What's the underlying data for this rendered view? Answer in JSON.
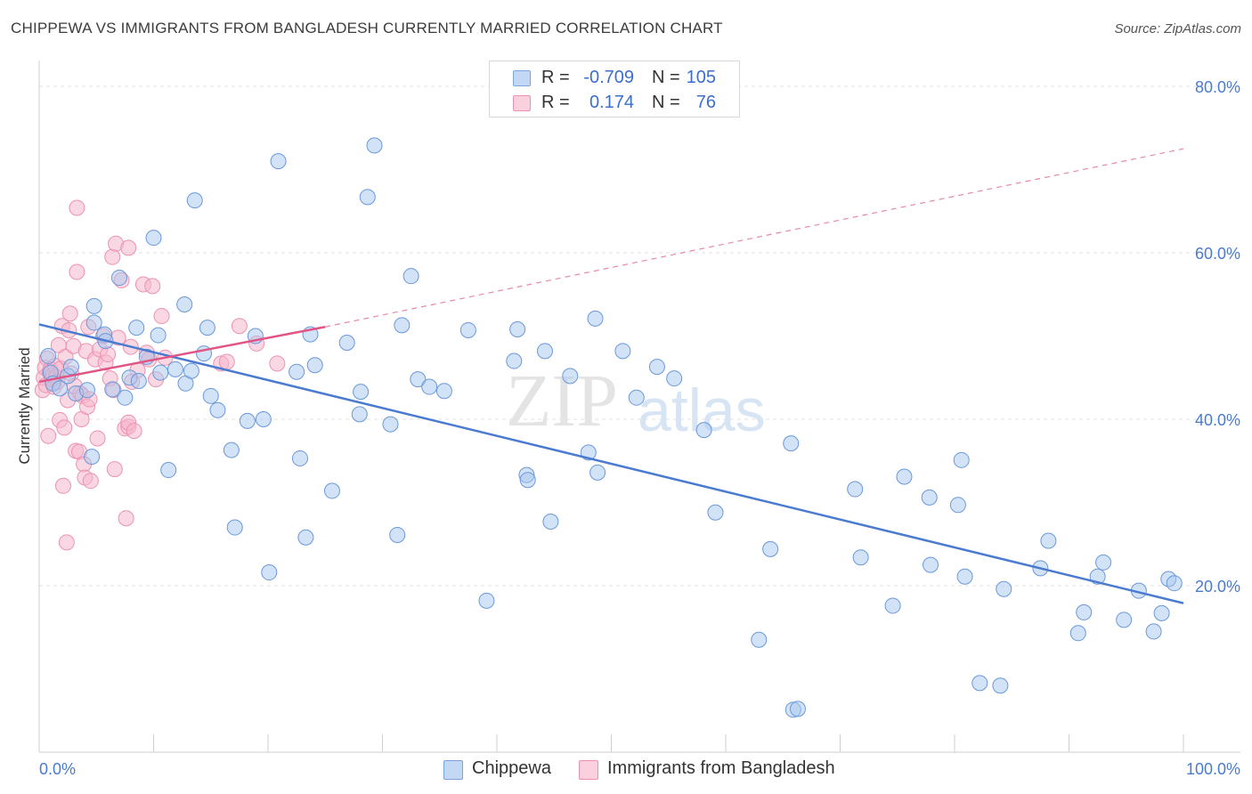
{
  "title": "CHIPPEWA VS IMMIGRANTS FROM BANGLADESH CURRENTLY MARRIED CORRELATION CHART",
  "source": "Source: ZipAtlas.com",
  "watermark": {
    "zip": "ZIP",
    "atlas": "atlas"
  },
  "legend": {
    "rows": [
      {
        "r_label": "R =",
        "r_value": "-0.709",
        "n_label": "N =",
        "n_value": "105",
        "color": "#a8c8f0"
      },
      {
        "r_label": "R =",
        "r_value": "0.174",
        "n_label": "N =",
        "n_value": "76",
        "color": "#f6b8cc"
      }
    ]
  },
  "bottom_legend": [
    {
      "label": "Chippewa",
      "color": "#a8c8f0"
    },
    {
      "label": "Immigrants from Bangladesh",
      "color": "#f6b8cc"
    }
  ],
  "chart_data": {
    "type": "scatter",
    "ylabel": "Currently Married",
    "xlim": [
      0,
      100
    ],
    "ylim": [
      0,
      80
    ],
    "x_tick_labels": [
      "0.0%",
      "100.0%"
    ],
    "y_ticks": [
      20,
      40,
      60,
      80
    ],
    "y_tick_labels": [
      "20.0%",
      "40.0%",
      "60.0%",
      "80.0%"
    ],
    "grid": true,
    "colors": {
      "chippewa": "#4a7bd0",
      "chippewa_fill": "#a8c8f0",
      "bangladesh": "#e05585",
      "bangladesh_fill": "#f6b8cc"
    },
    "series": [
      {
        "name": "Chippewa",
        "trend": {
          "x": [
            0,
            100
          ],
          "y": [
            51.4,
            17.9
          ]
        },
        "points": [
          [
            0.8,
            47.6
          ],
          [
            1.0,
            45.6
          ],
          [
            1.2,
            44.3
          ],
          [
            1.8,
            43.7
          ],
          [
            2.5,
            45.2
          ],
          [
            2.8,
            46.3
          ],
          [
            3.2,
            43.1
          ],
          [
            4.2,
            43.5
          ],
          [
            4.6,
            35.5
          ],
          [
            4.8,
            51.6
          ],
          [
            4.8,
            53.6
          ],
          [
            5.7,
            50.2
          ],
          [
            5.8,
            49.4
          ],
          [
            6.4,
            43.6
          ],
          [
            7.0,
            57.0
          ],
          [
            7.5,
            42.6
          ],
          [
            7.9,
            45.0
          ],
          [
            8.5,
            51.0
          ],
          [
            8.7,
            44.6
          ],
          [
            9.4,
            47.5
          ],
          [
            10.0,
            61.8
          ],
          [
            10.4,
            50.1
          ],
          [
            10.6,
            45.6
          ],
          [
            11.3,
            33.9
          ],
          [
            11.9,
            46.0
          ],
          [
            12.7,
            53.8
          ],
          [
            12.8,
            44.3
          ],
          [
            13.3,
            45.8
          ],
          [
            13.6,
            66.3
          ],
          [
            14.4,
            47.9
          ],
          [
            14.7,
            51.0
          ],
          [
            15.0,
            42.8
          ],
          [
            15.6,
            41.1
          ],
          [
            16.8,
            36.3
          ],
          [
            17.1,
            27.0
          ],
          [
            18.2,
            39.8
          ],
          [
            18.9,
            50.0
          ],
          [
            19.6,
            40.0
          ],
          [
            20.1,
            21.6
          ],
          [
            20.9,
            71.0
          ],
          [
            22.5,
            45.7
          ],
          [
            22.8,
            35.3
          ],
          [
            23.3,
            25.8
          ],
          [
            23.7,
            50.2
          ],
          [
            24.1,
            46.5
          ],
          [
            25.6,
            31.4
          ],
          [
            26.9,
            49.2
          ],
          [
            28.0,
            40.6
          ],
          [
            28.1,
            43.3
          ],
          [
            28.7,
            66.7
          ],
          [
            29.3,
            72.9
          ],
          [
            30.7,
            39.4
          ],
          [
            31.3,
            26.1
          ],
          [
            31.7,
            51.3
          ],
          [
            32.5,
            57.2
          ],
          [
            33.1,
            44.8
          ],
          [
            34.1,
            43.9
          ],
          [
            35.4,
            43.4
          ],
          [
            37.5,
            50.7
          ],
          [
            39.1,
            18.2
          ],
          [
            41.5,
            47.0
          ],
          [
            41.8,
            50.8
          ],
          [
            42.6,
            33.3
          ],
          [
            42.7,
            32.7
          ],
          [
            44.2,
            48.2
          ],
          [
            44.7,
            27.7
          ],
          [
            46.4,
            45.2
          ],
          [
            48.0,
            36.0
          ],
          [
            48.6,
            52.1
          ],
          [
            48.8,
            33.6
          ],
          [
            51.0,
            48.2
          ],
          [
            52.2,
            42.6
          ],
          [
            54.0,
            46.3
          ],
          [
            55.5,
            44.9
          ],
          [
            58.1,
            38.7
          ],
          [
            59.1,
            28.8
          ],
          [
            62.9,
            13.5
          ],
          [
            63.9,
            24.4
          ],
          [
            65.9,
            5.1
          ],
          [
            66.3,
            5.2
          ],
          [
            65.7,
            37.1
          ],
          [
            71.3,
            31.6
          ],
          [
            71.8,
            23.4
          ],
          [
            74.6,
            17.6
          ],
          [
            75.6,
            33.1
          ],
          [
            77.8,
            30.6
          ],
          [
            77.9,
            22.5
          ],
          [
            80.3,
            29.7
          ],
          [
            80.6,
            35.1
          ],
          [
            80.9,
            21.1
          ],
          [
            82.2,
            8.3
          ],
          [
            84.0,
            8.0
          ],
          [
            84.3,
            19.6
          ],
          [
            87.5,
            22.1
          ],
          [
            88.2,
            25.4
          ],
          [
            90.8,
            14.3
          ],
          [
            91.3,
            16.8
          ],
          [
            92.5,
            21.1
          ],
          [
            93.0,
            22.8
          ],
          [
            94.8,
            15.9
          ],
          [
            96.1,
            19.4
          ],
          [
            97.4,
            14.5
          ],
          [
            98.1,
            16.7
          ],
          [
            98.7,
            20.8
          ],
          [
            99.2,
            20.3
          ]
        ]
      },
      {
        "name": "Immigrants from Bangladesh",
        "trend": {
          "x": [
            0,
            25
          ],
          "y": [
            44.5,
            51.1
          ]
        },
        "trend_extended": {
          "x": [
            25,
            100
          ],
          "y": [
            51.1,
            72.5
          ]
        },
        "points": [
          [
            0.3,
            43.5
          ],
          [
            0.4,
            45.0
          ],
          [
            0.5,
            46.2
          ],
          [
            0.6,
            44.1
          ],
          [
            0.7,
            47.3
          ],
          [
            0.8,
            38.0
          ],
          [
            0.9,
            45.7
          ],
          [
            1.0,
            46.0
          ],
          [
            1.1,
            44.8
          ],
          [
            1.2,
            45.3
          ],
          [
            1.3,
            43.9
          ],
          [
            1.4,
            46.4
          ],
          [
            1.5,
            45.1
          ],
          [
            1.6,
            44.5
          ],
          [
            1.7,
            48.9
          ],
          [
            1.8,
            39.9
          ],
          [
            1.9,
            46.1
          ],
          [
            2.0,
            51.2
          ],
          [
            2.1,
            32.0
          ],
          [
            2.2,
            39.0
          ],
          [
            2.3,
            47.5
          ],
          [
            2.4,
            25.2
          ],
          [
            2.5,
            42.3
          ],
          [
            2.6,
            50.7
          ],
          [
            2.7,
            52.7
          ],
          [
            2.8,
            45.5
          ],
          [
            3.0,
            48.8
          ],
          [
            3.1,
            44.0
          ],
          [
            3.2,
            36.2
          ],
          [
            3.3,
            65.4
          ],
          [
            3.3,
            57.7
          ],
          [
            3.5,
            36.1
          ],
          [
            3.6,
            43.1
          ],
          [
            3.7,
            40.0
          ],
          [
            3.8,
            42.8
          ],
          [
            3.9,
            34.6
          ],
          [
            4.0,
            33.0
          ],
          [
            4.1,
            48.2
          ],
          [
            4.2,
            41.5
          ],
          [
            4.3,
            51.1
          ],
          [
            4.4,
            42.4
          ],
          [
            4.5,
            32.6
          ],
          [
            4.9,
            47.2
          ],
          [
            5.1,
            37.7
          ],
          [
            5.3,
            48.4
          ],
          [
            5.6,
            50.0
          ],
          [
            5.8,
            46.8
          ],
          [
            6.0,
            47.8
          ],
          [
            6.2,
            44.9
          ],
          [
            6.4,
            59.5
          ],
          [
            6.5,
            43.5
          ],
          [
            6.6,
            34.0
          ],
          [
            6.7,
            61.1
          ],
          [
            6.9,
            49.8
          ],
          [
            7.2,
            56.7
          ],
          [
            7.5,
            38.9
          ],
          [
            7.8,
            60.6
          ],
          [
            7.6,
            28.1
          ],
          [
            7.8,
            39.1
          ],
          [
            7.8,
            39.6
          ],
          [
            8.0,
            48.7
          ],
          [
            8.1,
            44.5
          ],
          [
            8.3,
            38.6
          ],
          [
            8.6,
            45.9
          ],
          [
            9.1,
            56.2
          ],
          [
            9.4,
            48.0
          ],
          [
            9.6,
            47.2
          ],
          [
            9.9,
            56.0
          ],
          [
            10.2,
            44.8
          ],
          [
            10.7,
            52.4
          ],
          [
            11.0,
            47.4
          ],
          [
            15.9,
            46.7
          ],
          [
            16.4,
            46.9
          ],
          [
            17.5,
            51.2
          ],
          [
            19.0,
            49.1
          ],
          [
            20.8,
            46.7
          ]
        ]
      }
    ]
  }
}
